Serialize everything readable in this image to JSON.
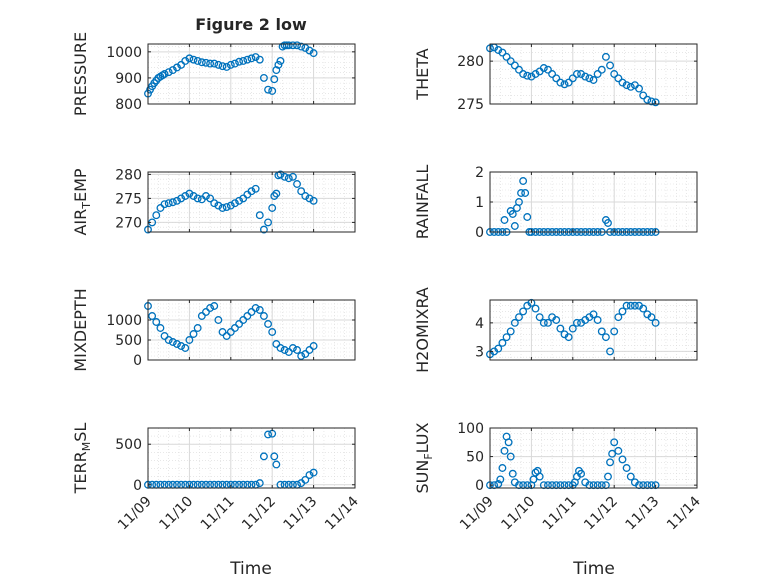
{
  "figure": {
    "title": "Figure 2 low",
    "xlabel_left": "Time",
    "xlabel_right": "Time"
  },
  "style": {
    "marker_color": "#0072BD",
    "grid_color": "#d9d9d9",
    "axis_color": "#262626"
  },
  "x_tick_labels": [
    "11/09",
    "11/10",
    "11/11",
    "11/12",
    "11/13",
    "11/14"
  ],
  "chart_data": [
    {
      "type": "scatter",
      "ylabel": "PRESSURE",
      "ylim": [
        800,
        1030
      ],
      "yticks": [
        800,
        900,
        1000
      ],
      "xlim": [
        0,
        5
      ],
      "grid": true,
      "marker": "circle-open",
      "x": [
        0,
        0.05,
        0.1,
        0.15,
        0.2,
        0.25,
        0.3,
        0.35,
        0.4,
        0.5,
        0.6,
        0.7,
        0.8,
        0.9,
        1,
        1.1,
        1.2,
        1.3,
        1.4,
        1.5,
        1.6,
        1.7,
        1.8,
        1.9,
        2,
        2.1,
        2.2,
        2.3,
        2.4,
        2.5,
        2.6,
        2.7,
        2.8,
        2.9,
        3,
        3.05,
        3.1,
        3.15,
        3.2,
        3.25,
        3.3,
        3.35,
        3.4,
        3.5,
        3.6,
        3.7,
        3.8,
        3.9,
        4
      ],
      "y": [
        840,
        855,
        868,
        880,
        890,
        900,
        905,
        910,
        915,
        922,
        930,
        940,
        950,
        965,
        975,
        970,
        965,
        960,
        958,
        955,
        955,
        950,
        945,
        942,
        950,
        955,
        962,
        965,
        970,
        975,
        980,
        970,
        900,
        855,
        850,
        895,
        930,
        950,
        965,
        1020,
        1025,
        1025,
        1025,
        1025,
        1025,
        1020,
        1015,
        1005,
        995
      ]
    },
    {
      "type": "scatter",
      "ylabel": "THETA",
      "ylim": [
        275,
        282
      ],
      "yticks": [
        275,
        280
      ],
      "xlim": [
        0,
        5
      ],
      "grid": true,
      "marker": "circle-open",
      "x": [
        0,
        0.1,
        0.2,
        0.3,
        0.4,
        0.5,
        0.6,
        0.7,
        0.8,
        0.9,
        1,
        1.1,
        1.2,
        1.3,
        1.4,
        1.5,
        1.6,
        1.7,
        1.8,
        1.9,
        2,
        2.1,
        2.2,
        2.3,
        2.4,
        2.5,
        2.6,
        2.7,
        2.8,
        2.9,
        3,
        3.1,
        3.2,
        3.3,
        3.4,
        3.5,
        3.6,
        3.7,
        3.8,
        3.9,
        4
      ],
      "y": [
        281.5,
        281.6,
        281.3,
        281,
        280.5,
        280,
        279.5,
        279,
        278.5,
        278.3,
        278.2,
        278.5,
        278.8,
        279.2,
        279,
        278.5,
        278,
        277.5,
        277.3,
        277.5,
        278,
        278.5,
        278.5,
        278.2,
        278,
        277.8,
        278.5,
        279,
        280.5,
        279.5,
        278.5,
        278,
        277.5,
        277.2,
        277,
        277.2,
        276.8,
        276,
        275.5,
        275.3,
        275.2
      ]
    },
    {
      "type": "scatter",
      "ylabel": "AIR_TEMP",
      "ylim": [
        268,
        280.5
      ],
      "yticks": [
        270,
        275,
        280
      ],
      "xlim": [
        0,
        5
      ],
      "grid": true,
      "marker": "circle-open",
      "x": [
        0,
        0.1,
        0.2,
        0.3,
        0.4,
        0.5,
        0.6,
        0.7,
        0.8,
        0.9,
        1,
        1.1,
        1.2,
        1.3,
        1.4,
        1.5,
        1.6,
        1.7,
        1.8,
        1.9,
        2,
        2.1,
        2.2,
        2.3,
        2.4,
        2.5,
        2.6,
        2.7,
        2.8,
        2.9,
        3,
        3.05,
        3.1,
        3.15,
        3.2,
        3.3,
        3.4,
        3.5,
        3.6,
        3.7,
        3.8,
        3.9,
        4
      ],
      "y": [
        268.5,
        270,
        271.5,
        273,
        273.8,
        274,
        274.2,
        274.5,
        275,
        275.5,
        276,
        275.5,
        275,
        274.8,
        275.5,
        275,
        274,
        273.5,
        273,
        273.2,
        273.5,
        274,
        274.5,
        275,
        275.8,
        276.5,
        277,
        271.5,
        268.5,
        270,
        273,
        275.5,
        276,
        279.8,
        280,
        279.5,
        279.2,
        279.5,
        278,
        276.5,
        275.5,
        275,
        274.5
      ]
    },
    {
      "type": "scatter",
      "ylabel": "RAINFALL",
      "ylim": [
        0,
        2
      ],
      "yticks": [
        0,
        1,
        2
      ],
      "xlim": [
        0,
        5
      ],
      "grid": true,
      "marker": "circle-open",
      "x": [
        0,
        0.1,
        0.2,
        0.3,
        0.35,
        0.4,
        0.5,
        0.55,
        0.6,
        0.65,
        0.7,
        0.75,
        0.8,
        0.85,
        0.9,
        0.95,
        1,
        1.1,
        1.2,
        1.3,
        1.4,
        1.5,
        1.6,
        1.7,
        1.8,
        1.9,
        2,
        2.1,
        2.2,
        2.3,
        2.4,
        2.5,
        2.6,
        2.7,
        2.8,
        2.85,
        2.9,
        3,
        3.1,
        3.2,
        3.3,
        3.4,
        3.5,
        3.6,
        3.7,
        3.8,
        3.9,
        4
      ],
      "y": [
        0,
        0,
        0,
        0,
        0.4,
        0,
        0.7,
        0.6,
        0.2,
        0.8,
        1,
        1.3,
        1.7,
        1.3,
        0.5,
        0,
        0,
        0,
        0,
        0,
        0,
        0,
        0,
        0,
        0,
        0,
        0,
        0,
        0,
        0,
        0,
        0,
        0,
        0,
        0.4,
        0.3,
        0,
        0,
        0,
        0,
        0,
        0,
        0,
        0,
        0,
        0,
        0,
        0
      ]
    },
    {
      "type": "scatter",
      "ylabel": "MIXDEPTH",
      "ylim": [
        0,
        1500
      ],
      "yticks": [
        0,
        500,
        1000
      ],
      "xlim": [
        0,
        5
      ],
      "grid": true,
      "marker": "circle-open",
      "x": [
        0,
        0.1,
        0.2,
        0.3,
        0.4,
        0.5,
        0.6,
        0.7,
        0.8,
        0.9,
        1,
        1.1,
        1.2,
        1.3,
        1.4,
        1.5,
        1.6,
        1.7,
        1.8,
        1.9,
        2,
        2.1,
        2.2,
        2.3,
        2.4,
        2.5,
        2.6,
        2.7,
        2.8,
        2.9,
        3,
        3.1,
        3.2,
        3.3,
        3.4,
        3.5,
        3.6,
        3.7,
        3.8,
        3.9,
        4
      ],
      "y": [
        1350,
        1100,
        950,
        800,
        600,
        500,
        450,
        400,
        350,
        300,
        500,
        650,
        800,
        1100,
        1200,
        1300,
        1350,
        1000,
        700,
        600,
        700,
        800,
        900,
        1000,
        1100,
        1200,
        1300,
        1250,
        1100,
        900,
        700,
        400,
        300,
        250,
        200,
        300,
        250,
        100,
        150,
        250,
        350
      ]
    },
    {
      "type": "scatter",
      "ylabel": "H2OMIXRA",
      "ylim": [
        2.7,
        4.8
      ],
      "yticks": [
        3,
        4
      ],
      "xlim": [
        0,
        5
      ],
      "grid": true,
      "marker": "circle-open",
      "x": [
        0,
        0.1,
        0.2,
        0.3,
        0.4,
        0.5,
        0.6,
        0.7,
        0.8,
        0.9,
        1,
        1.1,
        1.2,
        1.3,
        1.4,
        1.5,
        1.6,
        1.7,
        1.8,
        1.9,
        2,
        2.1,
        2.2,
        2.3,
        2.4,
        2.5,
        2.6,
        2.7,
        2.8,
        2.9,
        3,
        3.1,
        3.2,
        3.3,
        3.4,
        3.5,
        3.6,
        3.7,
        3.8,
        3.9,
        4
      ],
      "y": [
        2.9,
        3,
        3.1,
        3.3,
        3.5,
        3.7,
        4,
        4.2,
        4.4,
        4.6,
        4.7,
        4.5,
        4.2,
        4,
        4,
        4.2,
        4.1,
        3.8,
        3.6,
        3.5,
        3.8,
        4,
        4,
        4.1,
        4.2,
        4.3,
        4.1,
        3.7,
        3.5,
        3,
        3.7,
        4.2,
        4.4,
        4.6,
        4.6,
        4.6,
        4.6,
        4.5,
        4.3,
        4.2,
        4
      ]
    },
    {
      "type": "scatter",
      "ylabel": "TERR_MSL",
      "ylim": [
        -40,
        700
      ],
      "yticks": [
        0,
        500
      ],
      "xlim": [
        0,
        5
      ],
      "grid": true,
      "marker": "circle-open",
      "x": [
        0,
        0.1,
        0.2,
        0.3,
        0.4,
        0.5,
        0.6,
        0.7,
        0.8,
        0.9,
        1,
        1.1,
        1.2,
        1.3,
        1.4,
        1.5,
        1.6,
        1.7,
        1.8,
        1.9,
        2,
        2.1,
        2.2,
        2.3,
        2.4,
        2.5,
        2.6,
        2.7,
        2.8,
        2.9,
        3,
        3.05,
        3.1,
        3.2,
        3.3,
        3.4,
        3.5,
        3.6,
        3.7,
        3.8,
        3.9,
        4
      ],
      "y": [
        0,
        0,
        0,
        0,
        0,
        0,
        0,
        0,
        0,
        0,
        0,
        0,
        0,
        0,
        0,
        0,
        0,
        0,
        0,
        0,
        0,
        0,
        0,
        0,
        0,
        0,
        0,
        20,
        350,
        620,
        630,
        350,
        250,
        0,
        0,
        0,
        0,
        0,
        20,
        60,
        120,
        150
      ]
    },
    {
      "type": "scatter",
      "ylabel": "SUN_FLUX",
      "ylim": [
        -5,
        100
      ],
      "yticks": [
        0,
        50,
        100
      ],
      "xlim": [
        0,
        5
      ],
      "grid": true,
      "marker": "circle-open",
      "x": [
        0,
        0.1,
        0.2,
        0.25,
        0.3,
        0.35,
        0.4,
        0.45,
        0.5,
        0.55,
        0.6,
        0.7,
        0.8,
        0.9,
        1,
        1.05,
        1.1,
        1.15,
        1.2,
        1.3,
        1.4,
        1.5,
        1.6,
        1.7,
        1.8,
        1.9,
        2,
        2.05,
        2.1,
        2.15,
        2.2,
        2.3,
        2.4,
        2.5,
        2.6,
        2.7,
        2.8,
        2.85,
        2.9,
        2.95,
        3,
        3.1,
        3.2,
        3.3,
        3.4,
        3.5,
        3.6,
        3.7,
        3.8,
        3.9,
        4
      ],
      "y": [
        0,
        0,
        2,
        10,
        30,
        60,
        85,
        75,
        50,
        20,
        5,
        0,
        0,
        0,
        0,
        10,
        22,
        25,
        15,
        0,
        0,
        0,
        0,
        0,
        0,
        0,
        0,
        5,
        15,
        25,
        20,
        5,
        0,
        0,
        0,
        0,
        0,
        15,
        40,
        55,
        75,
        60,
        45,
        30,
        15,
        5,
        0,
        0,
        0,
        0,
        0
      ]
    }
  ]
}
